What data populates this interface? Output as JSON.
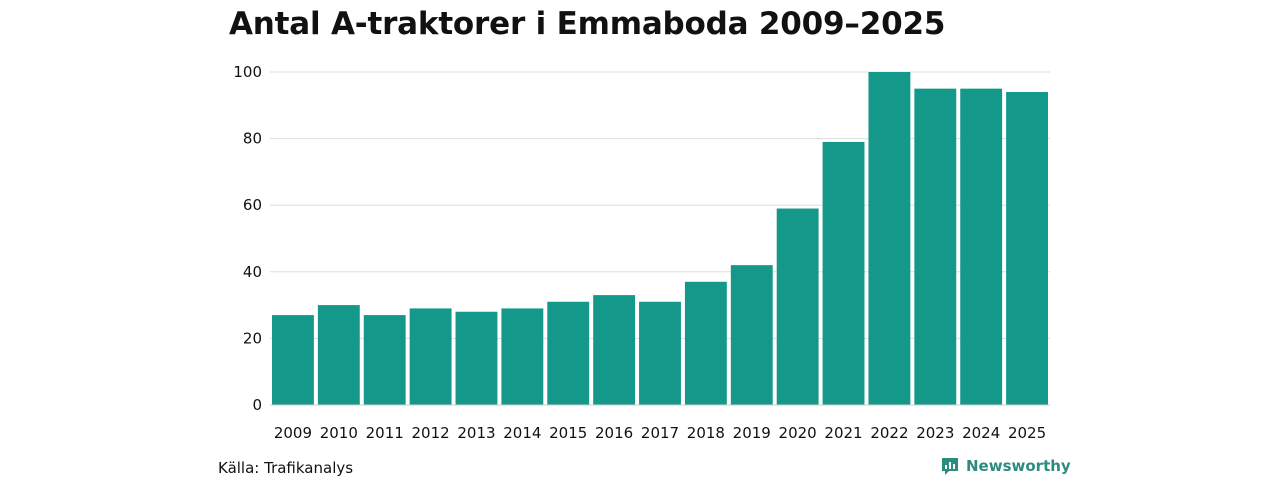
{
  "chart_data": {
    "type": "bar",
    "title": "Antal A-traktorer i Emmaboda 2009–2025",
    "xlabel": "",
    "ylabel": "",
    "categories": [
      "2009",
      "2010",
      "2011",
      "2012",
      "2013",
      "2014",
      "2015",
      "2016",
      "2017",
      "2018",
      "2019",
      "2020",
      "2021",
      "2022",
      "2023",
      "2024",
      "2025"
    ],
    "values": [
      27,
      30,
      27,
      29,
      28,
      29,
      31,
      33,
      31,
      37,
      42,
      59,
      79,
      100,
      95,
      95,
      94
    ],
    "ylim": [
      0,
      100
    ],
    "yticks": [
      0,
      20,
      40,
      60,
      80,
      100
    ],
    "grid": true,
    "bar_color": "#14988a"
  },
  "footer": {
    "source": "Källa: Trafikanalys",
    "brand": "Newsworthy",
    "brand_color": "#2e8b80"
  }
}
